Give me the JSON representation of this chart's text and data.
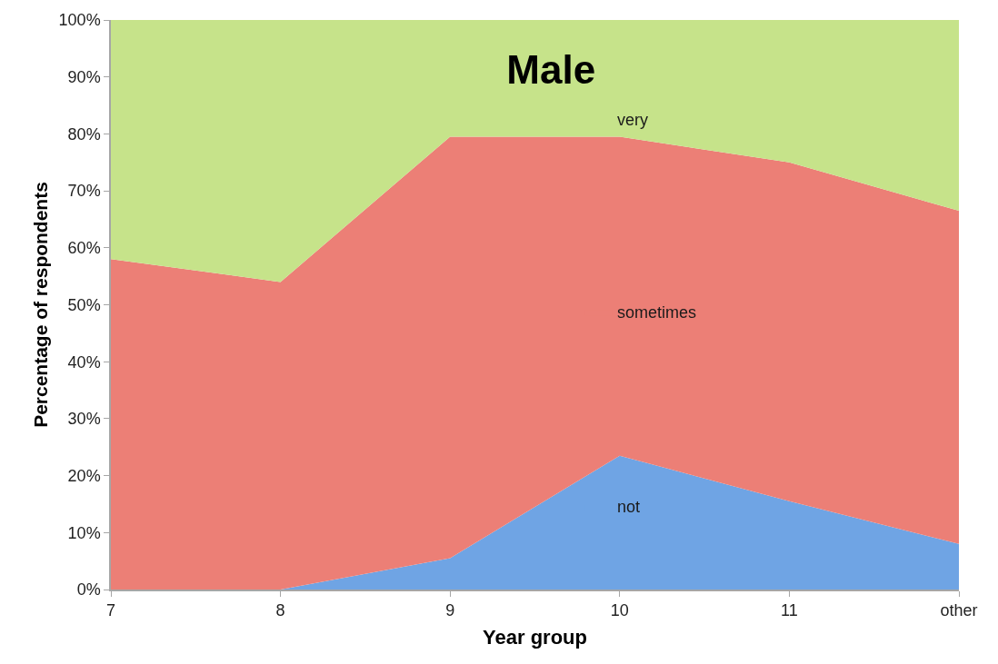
{
  "chart_data": {
    "type": "area",
    "title": "Male",
    "xlabel": "Year group",
    "ylabel": "Percentage of respondents",
    "categories": [
      "7",
      "8",
      "9",
      "10",
      "11",
      "other"
    ],
    "stacked": true,
    "series": [
      {
        "name": "not",
        "color": "#6fa4e4",
        "values": [
          0,
          0,
          5.5,
          23.5,
          15.5,
          8
        ]
      },
      {
        "name": "sometimes",
        "color": "#ec7f76",
        "values": [
          58,
          54,
          74,
          56,
          59.5,
          58.5
        ]
      },
      {
        "name": "very",
        "color": "#c6e38a",
        "values": [
          42,
          46,
          20.5,
          20.5,
          25,
          33.5
        ]
      }
    ],
    "ylim": [
      0,
      100
    ],
    "yticks": [
      {
        "value": 0,
        "label": "0%"
      },
      {
        "value": 10,
        "label": "10%"
      },
      {
        "value": 20,
        "label": "20%"
      },
      {
        "value": 30,
        "label": "30%"
      },
      {
        "value": 40,
        "label": "40%"
      },
      {
        "value": 50,
        "label": "50%"
      },
      {
        "value": 60,
        "label": "60%"
      },
      {
        "value": 70,
        "label": "70%"
      },
      {
        "value": 80,
        "label": "80%"
      },
      {
        "value": 90,
        "label": "90%"
      },
      {
        "value": 100,
        "label": "100%"
      }
    ]
  }
}
